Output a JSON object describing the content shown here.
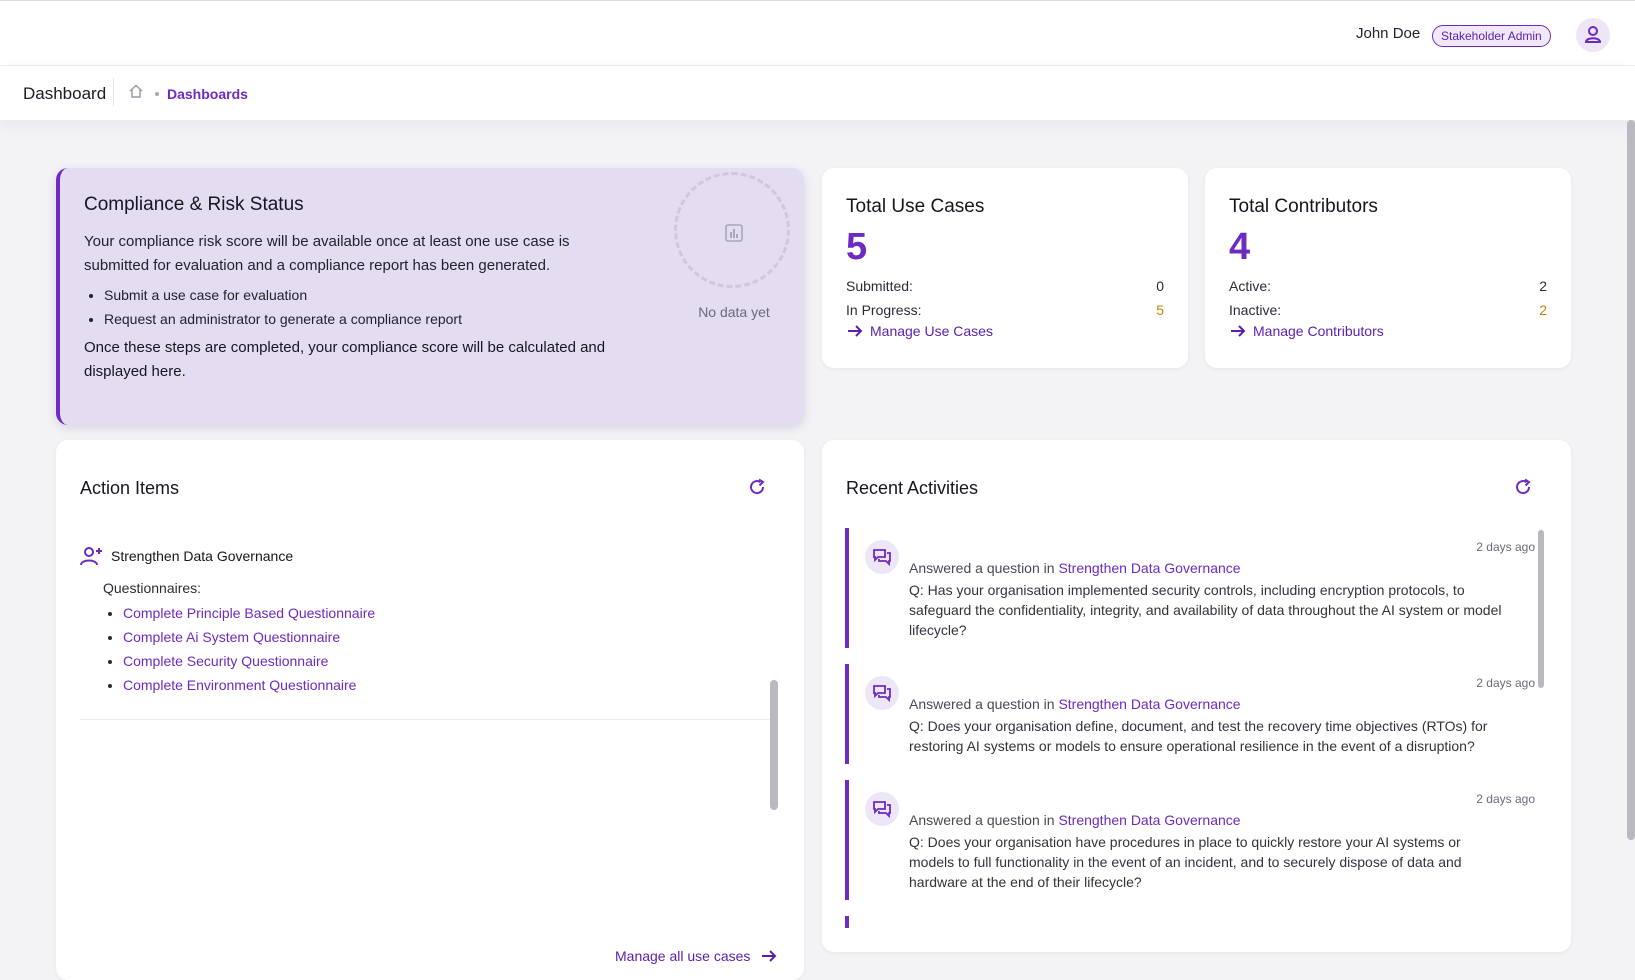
{
  "header": {
    "user_name": "John Doe",
    "role_badge": "Stakeholder Admin"
  },
  "breadcrumb": {
    "title": "Dashboard",
    "current": "Dashboards"
  },
  "compliance": {
    "title": "Compliance & Risk Status",
    "description": "Your compliance risk score will be available once at least one use case is submitted for evaluation and a compliance report has been generated.",
    "steps": [
      "Submit a use case for evaluation",
      "Request an administrator to generate a compliance report"
    ],
    "footer": "Once these steps are completed, your compliance score will be calculated and displayed here.",
    "no_data": "No data yet"
  },
  "use_cases": {
    "title": "Total Use Cases",
    "total": "5",
    "submitted_label": "Submitted:",
    "submitted_value": "0",
    "in_progress_label": "In Progress:",
    "in_progress_value": "5",
    "link": "Manage Use Cases"
  },
  "contributors": {
    "title": "Total Contributors",
    "total": "4",
    "active_label": "Active:",
    "active_value": "2",
    "inactive_label": "Inactive:",
    "inactive_value": "2",
    "link": "Manage Contributors"
  },
  "action_items": {
    "title": "Action Items",
    "item_title": "Strengthen Data Governance",
    "questionnaires_label": "Questionnaires:",
    "questionnaires": [
      "Complete Principle Based Questionnaire",
      "Complete Ai System Questionnaire",
      "Complete Security Questionnaire",
      "Complete Environment Questionnaire"
    ],
    "manage_link": "Manage all use cases"
  },
  "recent": {
    "title": "Recent Activities",
    "items": [
      {
        "time": "2 days ago",
        "action": "Answered a question in",
        "target": "Strengthen Data Governance",
        "question": "Q: Has your organisation implemented security controls, including encryption protocols, to safeguard the confidentiality, integrity, and availability of data throughout the AI system or model lifecycle?"
      },
      {
        "time": "2 days ago",
        "action": "Answered a question in",
        "target": "Strengthen Data Governance",
        "question": "Q: Does your organisation define, document, and test the recovery time objectives (RTOs) for restoring AI systems or models to ensure operational resilience in the event of a disruption?"
      },
      {
        "time": "2 days ago",
        "action": "Answered a question in",
        "target": "Strengthen Data Governance",
        "question": "Q: Does your organisation have procedures in place to quickly restore your AI systems or models to full functionality in the event of an incident, and to securely dispose of data and hardware at the end of their lifecycle?"
      }
    ]
  },
  "colors": {
    "accent": "#6d2bc2",
    "warning": "#c47f0a",
    "compliance_bg": "#e4ddf1"
  }
}
